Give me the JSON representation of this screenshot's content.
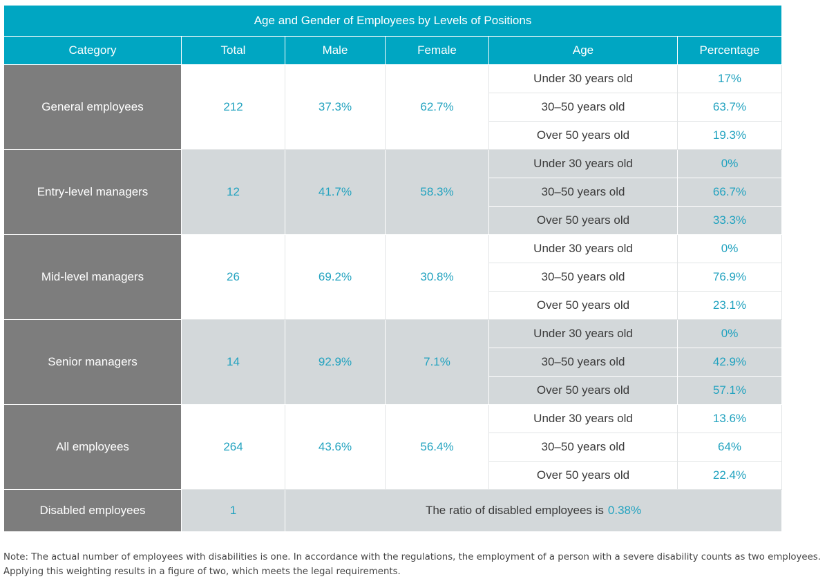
{
  "table": {
    "title": "Age and Gender of Employees by Levels of Positions",
    "headers": {
      "category": "Category",
      "total": "Total",
      "male": "Male",
      "female": "Female",
      "age": "Age",
      "percentage": "Percentage"
    },
    "groups": [
      {
        "category": "General employees",
        "total": "212",
        "male": "37.3%",
        "female": "62.7%",
        "ages": [
          {
            "age": "Under 30 years old",
            "pct": "17%"
          },
          {
            "age": "30–50 years old",
            "pct": "63.7%"
          },
          {
            "age": "Over 50 years old",
            "pct": "19.3%"
          }
        ]
      },
      {
        "category": "Entry-level managers",
        "total": "12",
        "male": "41.7%",
        "female": "58.3%",
        "ages": [
          {
            "age": "Under 30 years old",
            "pct": "0%"
          },
          {
            "age": "30–50 years old",
            "pct": "66.7%"
          },
          {
            "age": "Over 50 years old",
            "pct": "33.3%"
          }
        ]
      },
      {
        "category": "Mid-level managers",
        "total": "26",
        "male": "69.2%",
        "female": "30.8%",
        "ages": [
          {
            "age": "Under 30 years old",
            "pct": "0%"
          },
          {
            "age": "30–50 years old",
            "pct": "76.9%"
          },
          {
            "age": "Over 50 years old",
            "pct": "23.1%"
          }
        ]
      },
      {
        "category": "Senior managers",
        "total": "14",
        "male": "92.9%",
        "female": "7.1%",
        "ages": [
          {
            "age": "Under 30 years old",
            "pct": "0%"
          },
          {
            "age": "30–50 years old",
            "pct": "42.9%"
          },
          {
            "age": "Over 50 years old",
            "pct": "57.1%"
          }
        ]
      },
      {
        "category": "All employees",
        "total": "264",
        "male": "43.6%",
        "female": "56.4%",
        "ages": [
          {
            "age": "Under 30 years old",
            "pct": "13.6%"
          },
          {
            "age": "30–50 years old",
            "pct": "64%"
          },
          {
            "age": "Over 50 years old",
            "pct": "22.4%"
          }
        ]
      }
    ],
    "disabled": {
      "category": "Disabled employees",
      "total": "1",
      "ratio_text": "The ratio of disabled employees is",
      "ratio_value": "0.38%"
    }
  },
  "note": "Note: The actual number of employees with disabilities is one. In accordance with the regulations, the employment of a person with a severe disability counts as two employees. Applying this weighting results in a figure of two, which meets the legal requirements.",
  "colors": {
    "header_bg": "#00a6c2",
    "category_bg": "#7d7d7d",
    "band_grey": "#d3d8da",
    "value_text": "#21a2bf"
  }
}
